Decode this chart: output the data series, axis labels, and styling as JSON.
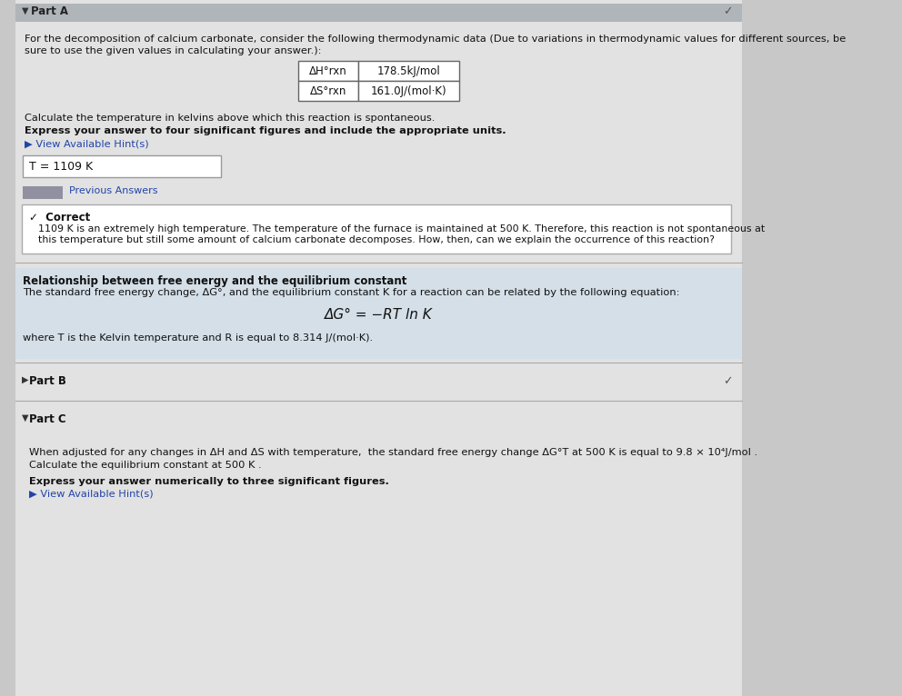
{
  "bg_color": "#c8c8c8",
  "page_bg": "#e2e2e2",
  "white": "#ffffff",
  "light_blue_bg": "#d4dfe8",
  "part_a_label": "Part A",
  "checkmark": "✓",
  "intro_line1": "For the decomposition of calcium carbonate, consider the following thermodynamic data (Due to variations in thermodynamic values for different sources, be",
  "intro_line2": "sure to use the given values in calculating your answer.):",
  "table_row1_label": "ΔH°rxn",
  "table_row1_val": "178.5kJ/mol",
  "table_row2_label": "ΔS°rxn",
  "table_row2_val": "161.0J/(mol·K)",
  "calc_temp_text": "Calculate the temperature in kelvins above which this reaction is spontaneous.",
  "express_text": "Express your answer to four significant figures and include the appropriate units.",
  "hint_text": "▶ View Available Hint(s)",
  "answer_box_text": "T = 1109 K",
  "prev_answers_text": "Previous Answers",
  "correct_label": "✓  Correct",
  "correct_line1": "1109 K is an extremely high temperature. The temperature of the furnace is maintained at 500 K. Therefore, this reaction is not spontaneous at",
  "correct_line2": "this temperature but still some amount of calcium carbonate decomposes. How, then, can we explain the occurrence of this reaction?",
  "section_title": "Relationship between free energy and the equilibrium constant",
  "section_body": "The standard free energy change, ΔG°, and the equilibrium constant K for a reaction can be related by the following equation:",
  "equation": "ΔG° = −RT ln K",
  "section_footer": "where T is the Kelvin temperature and R is equal to 8.314 J/(mol·K).",
  "part_b_label": "Part B",
  "part_c_label": "Part C",
  "part_c_body1": "When adjusted for any changes in ΔH and ΔS with temperature,  the standard free energy change ΔG°T at 500 K is equal to 9.8 × 10⁴J/mol .",
  "part_c_body2": "Calculate the equilibrium constant at 500 K .",
  "express_text2": "Express your answer numerically to three significant figures.",
  "hint_text2": "▶ View Available Hint(s)",
  "dark_arrow": "▼",
  "right_arrow": "▶"
}
